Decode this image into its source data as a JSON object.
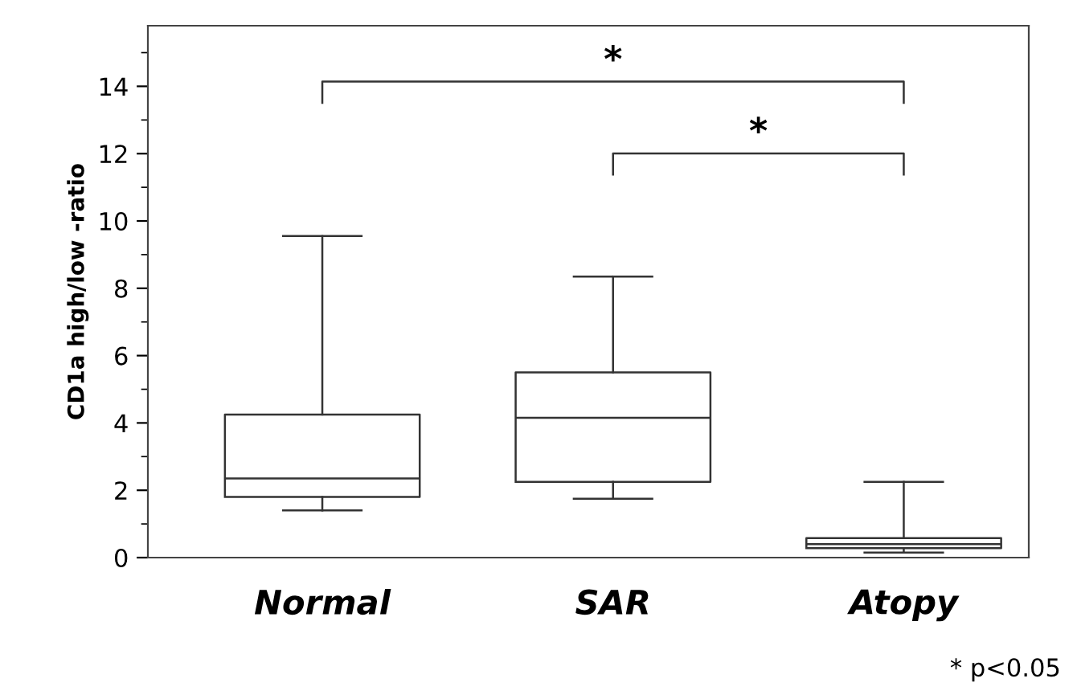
{
  "chart_data": {
    "type": "box",
    "ylabel": "CD1a high/low -ratio",
    "categories": [
      "Normal",
      "SAR",
      "Atopy"
    ],
    "boxes": [
      {
        "low": 1.4,
        "q1": 1.8,
        "median": 2.35,
        "q3": 4.25,
        "high": 9.55
      },
      {
        "low": 1.75,
        "q1": 2.25,
        "median": 4.15,
        "q3": 5.5,
        "high": 8.35
      },
      {
        "low": 0.15,
        "q1": 0.28,
        "median": 0.4,
        "q3": 0.58,
        "high": 2.25
      }
    ],
    "ylim": [
      0,
      15.8
    ],
    "yticks": [
      0,
      2,
      4,
      6,
      8,
      10,
      12,
      14
    ],
    "grid": false,
    "annotations": [
      "*",
      "*",
      "* p<0.05"
    ]
  }
}
